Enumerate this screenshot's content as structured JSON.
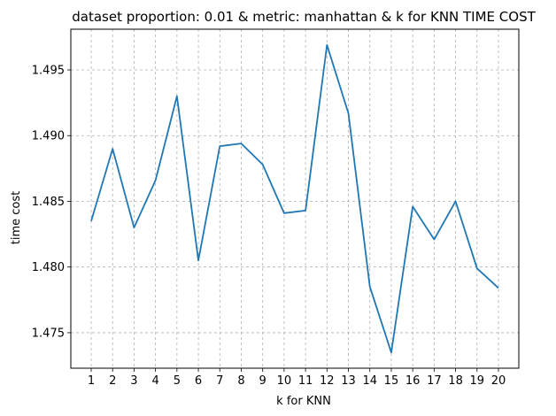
{
  "chart_data": {
    "type": "line",
    "title": "dataset proportion: 0.01 & metric: manhattan & k for KNN TIME COST",
    "xlabel": "k for KNN",
    "ylabel": "time cost",
    "x": [
      1,
      2,
      3,
      4,
      5,
      6,
      7,
      8,
      9,
      10,
      11,
      12,
      13,
      14,
      15,
      16,
      17,
      18,
      19,
      20
    ],
    "series": [
      {
        "values": [
          1.4835,
          1.489,
          1.483,
          1.4866,
          1.493,
          1.4805,
          1.4892,
          1.4894,
          1.4878,
          1.4841,
          1.4843,
          1.4969,
          1.4917,
          1.4785,
          1.4735,
          1.4846,
          1.4821,
          1.485,
          1.4799,
          1.4784
        ],
        "color": "#1f77b4"
      }
    ],
    "xticks": [
      "1",
      "2",
      "3",
      "4",
      "5",
      "6",
      "7",
      "8",
      "9",
      "10",
      "11",
      "12",
      "13",
      "14",
      "15",
      "16",
      "17",
      "18",
      "19",
      "20"
    ],
    "yticks": [
      "1.475",
      "1.480",
      "1.485",
      "1.490",
      "1.495"
    ],
    "ytick_values": [
      1.475,
      1.48,
      1.485,
      1.49,
      1.495
    ],
    "xlim": [
      0.05,
      20.95
    ],
    "ylim": [
      1.4723,
      1.4981
    ],
    "grid": true
  }
}
